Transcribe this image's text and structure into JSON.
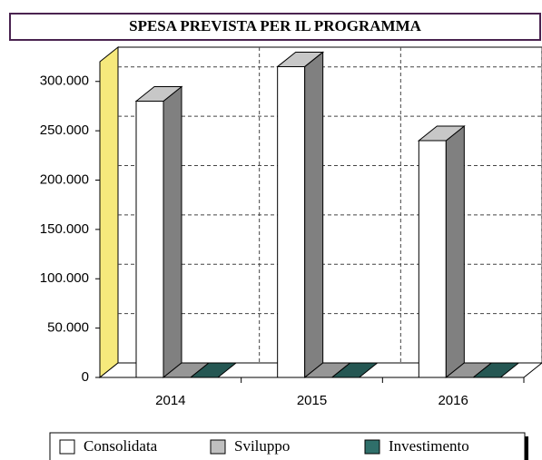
{
  "chart_data": {
    "type": "bar3d",
    "title": "SPESA PREVISTA PER IL PROGRAMMA",
    "categories": [
      "2014",
      "2015",
      "2016"
    ],
    "series": [
      {
        "name": "Consolidata",
        "color": "#ffffff",
        "values": [
          280000,
          315000,
          240000
        ]
      },
      {
        "name": "Sviluppo",
        "color": "#c0c0c0",
        "values": [
          0,
          0,
          0
        ]
      },
      {
        "name": "Investimento",
        "color": "#2f6f6a",
        "values": [
          0,
          0,
          0
        ]
      }
    ],
    "ylim": [
      0,
      320000
    ],
    "yticks": [
      {
        "value": 0,
        "label": "0"
      },
      {
        "value": 50000,
        "label": "50.000"
      },
      {
        "value": 100000,
        "label": "100.000"
      },
      {
        "value": 150000,
        "label": "150.000"
      },
      {
        "value": 200000,
        "label": "200.000"
      },
      {
        "value": 250000,
        "label": "250.000"
      },
      {
        "value": 300000,
        "label": "300.000"
      }
    ],
    "grid": true,
    "wall_color": "#f6e97c",
    "legend": "bottom"
  }
}
